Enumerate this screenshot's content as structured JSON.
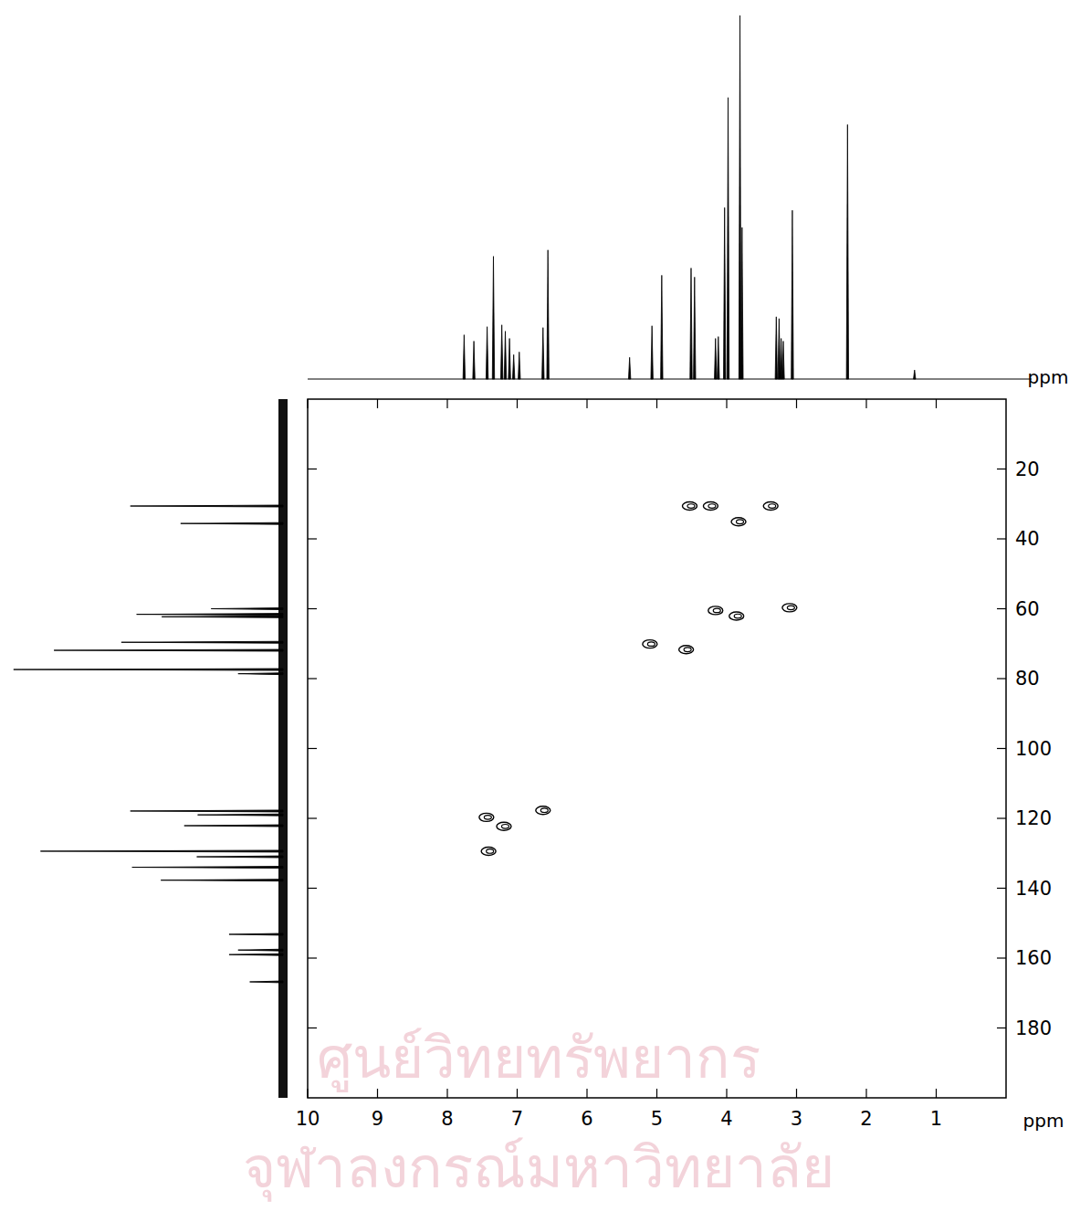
{
  "chart_data": {
    "type": "scatter",
    "x_label": "ppm",
    "y_label": "ppm",
    "xlim": [
      10,
      0
    ],
    "xticks": [
      10,
      9,
      8,
      7,
      6,
      5,
      4,
      3,
      2,
      1
    ],
    "ylim": [
      0,
      200
    ],
    "yticks": [
      20,
      40,
      60,
      80,
      100,
      120,
      140,
      160,
      180
    ],
    "x": [
      4.53,
      4.23,
      3.37,
      3.83,
      4.16,
      3.86,
      3.1,
      5.1,
      4.58,
      7.44,
      7.19,
      6.63,
      7.41
    ],
    "values": [
      30.6,
      30.6,
      30.6,
      35.1,
      60.5,
      62.1,
      59.7,
      70.1,
      71.7,
      119.7,
      122.3,
      117.7,
      129.4
    ],
    "color": "#000000",
    "h_spectrum": {
      "x": [
        7.76,
        7.62,
        7.43,
        7.34,
        7.22,
        7.17,
        7.11,
        7.05,
        6.97,
        6.63,
        6.56,
        5.39,
        5.07,
        4.93,
        4.51,
        4.46,
        4.16,
        4.12,
        4.03,
        3.98,
        3.81,
        3.78,
        3.29,
        3.25,
        3.22,
        3.19,
        3.06,
        2.27,
        1.31
      ],
      "values": [
        49,
        42,
        58,
        136,
        60,
        53,
        45,
        27,
        30,
        57,
        143,
        24,
        59,
        115,
        123,
        113,
        45,
        47,
        190,
        312,
        403,
        168,
        69,
        67,
        45,
        42,
        187,
        282,
        10
      ],
      "ylim": [
        0,
        410
      ]
    },
    "c_spectrum": {
      "x": [
        30.6,
        35.6,
        60.0,
        61.6,
        62.3,
        69.6,
        71.9,
        77.4,
        78.6,
        117.9,
        119.0,
        122.1,
        129.4,
        131.0,
        134.0,
        137.7,
        153.2,
        157.7,
        159.0,
        166.8
      ],
      "values": [
        170,
        114,
        80,
        163,
        135,
        180,
        255,
        300,
        50,
        170,
        95,
        110,
        270,
        96,
        168,
        136,
        60,
        50,
        60,
        37
      ],
      "xlim": [
        0,
        310
      ]
    },
    "annotations": [
      "ศูนย์วิทยทรัพยากร",
      "จุฬาลงกรณ์มหาวิทยาลัย"
    ]
  }
}
